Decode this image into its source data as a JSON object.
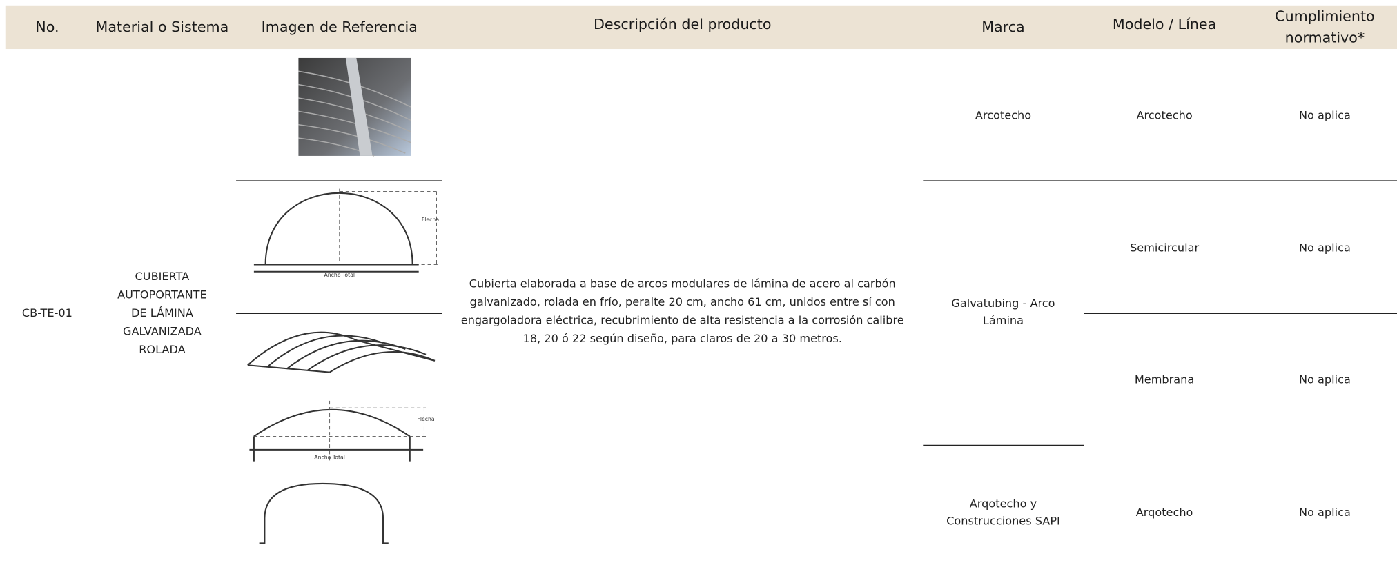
{
  "header": {
    "columns": [
      [
        "No."
      ],
      [
        "Material o Sistema"
      ],
      [
        "Imagen de Referencia"
      ],
      [
        "Descripción del producto"
      ],
      [
        "Marca"
      ],
      [
        "Modelo / Línea"
      ],
      [
        "Cumplimiento",
        "normativo*"
      ]
    ]
  },
  "row": {
    "no": "CB-TE-01",
    "material": [
      "CUBIERTA",
      "AUTOPORTANTE",
      "DE LÁMINA",
      "GALVANIZADA",
      "ROLADA"
    ],
    "image_labels": {
      "semicircular": [
        "Flecha",
        "Ancho Total"
      ],
      "rebajada": [
        "Flecha",
        "Ancho Total"
      ]
    },
    "description": [
      "Cubierta elaborada a base de arcos modulares de lámina de acero al carbón",
      "galvanizado, rolada en frío, peralte 20 cm, ancho 61 cm, unidos entre sí con",
      "engargoladora eléctrica, recubrimiento de alta resistencia a la corrosión calibre",
      "18, 20 ó 22 según diseño, para claros de 20 a 30 metros."
    ],
    "marcas": [
      [
        "Arcotecho"
      ],
      [
        "Galvatubing - Arco",
        "Lámina"
      ],
      [
        "Arqotecho y",
        "Construcciones SAPI"
      ]
    ],
    "modelos": [
      "Arcotecho",
      "Semicircular",
      "Membrana",
      "Arqotecho"
    ],
    "cumplimiento": [
      "No aplica",
      "No aplica",
      "No aplica",
      "No aplica"
    ]
  }
}
